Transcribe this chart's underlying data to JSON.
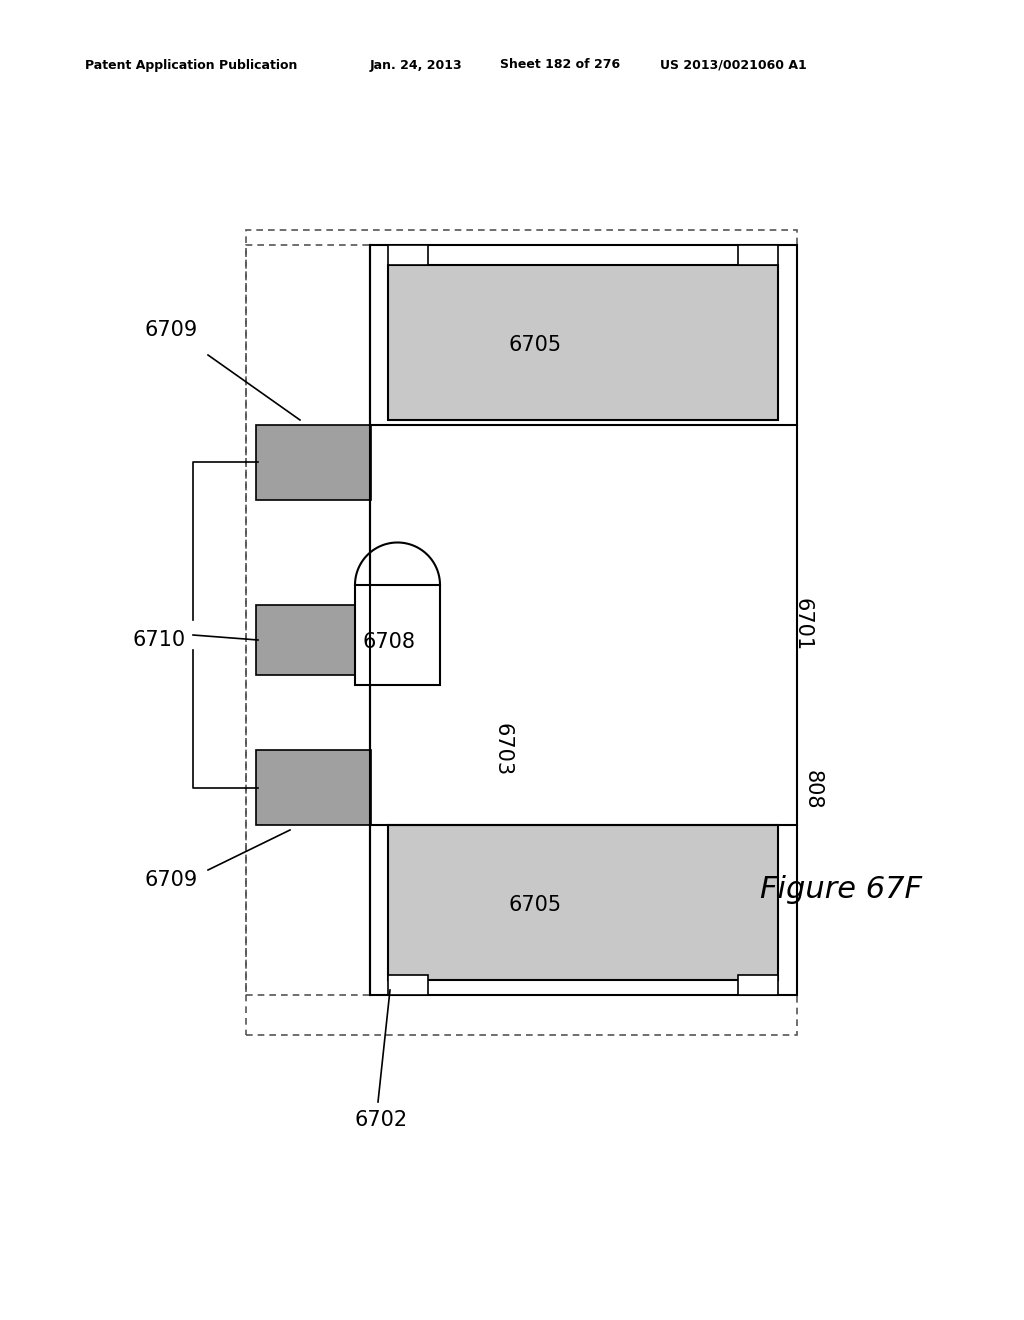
{
  "bg_color": "#ffffff",
  "header_text": "Patent Application Publication",
  "header_date": "Jan. 24, 2013",
  "header_sheet": "Sheet 182 of 276",
  "header_patent": "US 2013/0021060 A1",
  "figure_label": "Figure 67F",
  "light_gray": "#c8c8c8",
  "medium_gray": "#a0a0a0",
  "dotted_border_color": "#555555",
  "solid_border_color": "#000000",
  "labels": {
    "6709_top": "6709",
    "6709_bot": "6709",
    "6710": "6710",
    "6708": "6708",
    "6701": "6701",
    "6702": "6702",
    "6703": "6703",
    "6705_top": "6705",
    "6705_bot": "6705",
    "808": "808"
  }
}
